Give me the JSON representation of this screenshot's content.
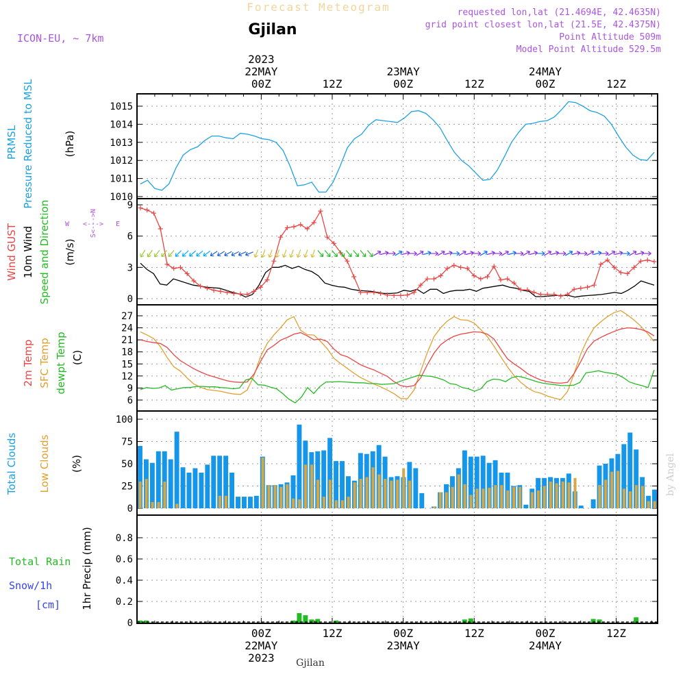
{
  "header": {
    "product": "Forecast Meteogram",
    "location": "Gjilan",
    "model": "ICON-EU, ~ 7km",
    "requested": "requested lon,lat (21.4694E, 42.4635N)",
    "gridpoint": "grid point closest lon,lat (21.5E, 42.4375N)",
    "point_alt": "Point Altitude 509m",
    "model_alt": "Model Point Altitude 529.5m",
    "footer_location": "Gjilan",
    "credit": "by Angel",
    "compass": {
      "n": "N",
      "s": "S",
      "w": "W",
      "e": "E",
      "arrow_h": "<--->"
    }
  },
  "colors": {
    "pressure": "#1ba1e2",
    "gust": "#e84545",
    "wind": "#000000",
    "winddir": "#22bb22",
    "t2m": "#e84545",
    "sfc": "#e0a030",
    "dew": "#22bb22",
    "total_clouds": "#1696e8",
    "low_clouds": "#d4a848",
    "rain": "#22bb22",
    "snow": "#3344ee",
    "violet": "#aa55dd"
  },
  "time_axis": {
    "top": [
      {
        "line1": "2023",
        "line2": "22MAY",
        "line3": "00Z",
        "hour": 21
      },
      {
        "line1": "",
        "line2": "",
        "line3": "12Z",
        "hour": 33
      },
      {
        "line1": "",
        "line2": "23MAY",
        "line3": "00Z",
        "hour": 45
      },
      {
        "line1": "",
        "line2": "",
        "line3": "12Z",
        "hour": 57
      },
      {
        "line1": "",
        "line2": "24MAY",
        "line3": "00Z",
        "hour": 69
      },
      {
        "line1": "",
        "line2": "",
        "line3": "12Z",
        "hour": 81
      }
    ],
    "bottom": [
      {
        "line1": "00Z",
        "line2": "22MAY",
        "line3": "2023",
        "hour": 21
      },
      {
        "line1": "12Z",
        "line2": "",
        "line3": "",
        "hour": 33
      },
      {
        "line1": "00Z",
        "line2": "23MAY",
        "line3": "",
        "hour": 45
      },
      {
        "line1": "12Z",
        "line2": "",
        "line3": "",
        "hour": 57
      },
      {
        "line1": "00Z",
        "line2": "24MAY",
        "line3": "",
        "hour": 69
      },
      {
        "line1": "12Z",
        "line2": "",
        "line3": "",
        "hour": 81
      }
    ]
  },
  "chart_data": [
    {
      "type": "line",
      "panel": "pressure",
      "ylabel": [
        "PRMSL",
        "Pressure Reduced to MSL",
        "(hPa)"
      ],
      "ylim": [
        1010,
        1015.8
      ],
      "yticks": [
        1010,
        1011,
        1012,
        1013,
        1014,
        1015
      ],
      "series": [
        {
          "name": "PRMSL",
          "values": [
            1010.7,
            1010.9,
            1010.45,
            1010.35,
            1010.7,
            1011.6,
            1012.3,
            1012.6,
            1012.75,
            1013.1,
            1013.35,
            1013.35,
            1013.25,
            1013.2,
            1013.5,
            1013.45,
            1013.35,
            1013.2,
            1013.15,
            1013.0,
            1012.55,
            1011.65,
            1010.6,
            1010.65,
            1010.8,
            1010.25,
            1010.25,
            1010.8,
            1011.7,
            1012.7,
            1013.2,
            1013.45,
            1013.95,
            1014.25,
            1014.2,
            1014.15,
            1014.1,
            1014.35,
            1014.7,
            1014.75,
            1014.6,
            1014.25,
            1013.8,
            1013.1,
            1012.45,
            1012.0,
            1011.7,
            1011.3,
            1010.9,
            1010.95,
            1011.45,
            1012.2,
            1013.0,
            1013.55,
            1014.0,
            1014.05,
            1014.15,
            1014.2,
            1014.4,
            1014.8,
            1015.25,
            1015.2,
            1015.0,
            1014.75,
            1014.65,
            1014.45,
            1014.0,
            1013.35,
            1012.75,
            1012.3,
            1012.05,
            1012.0,
            1012.45
          ]
        }
      ]
    },
    {
      "type": "line",
      "panel": "wind",
      "ylabel": [
        "Wind GUST",
        "10m Wind",
        "Speed and Direction",
        "(m/s)"
      ],
      "ylim": [
        0,
        9.2
      ],
      "yticks": [
        0,
        3,
        6,
        9
      ],
      "series": [
        {
          "name": "Wind GUST",
          "values": [
            8.7,
            8.5,
            8.2,
            6.7,
            3.3,
            2.9,
            3.0,
            2.4,
            1.7,
            1.2,
            1.0,
            0.8,
            0.7,
            0.6,
            0.5,
            0.45,
            0.4,
            0.7,
            1.1,
            1.8,
            3.6,
            5.9,
            6.8,
            6.9,
            7.1,
            6.7,
            7.3,
            8.4,
            5.9,
            5.3,
            4.4,
            3.6,
            2.1,
            0.6,
            0.6,
            0.6,
            0.5,
            0.35,
            0.3,
            0.3,
            0.35,
            0.6,
            1.3,
            1.9,
            1.9,
            2.2,
            2.9,
            3.2,
            3.0,
            2.9,
            2.2,
            1.9,
            2.1,
            3.1,
            1.8,
            1.9,
            1.5,
            0.85,
            0.85,
            0.6,
            0.4,
            0.4,
            0.4,
            0.25,
            0.4,
            0.9,
            1.0,
            1.1,
            1.3,
            3.3,
            3.7,
            3.0,
            2.5,
            2.4,
            3.0,
            3.6,
            3.7,
            3.55
          ]
        },
        {
          "name": "10m Wind",
          "values": [
            3.4,
            2.8,
            2.4,
            1.4,
            1.3,
            1.9,
            1.7,
            1.5,
            1.3,
            1.2,
            1.1,
            1.05,
            1.0,
            0.8,
            0.6,
            0.45,
            0.15,
            0.4,
            1.3,
            2.5,
            3.0,
            3.0,
            3.2,
            2.9,
            3.1,
            2.8,
            2.6,
            2.2,
            1.5,
            1.3,
            1.15,
            1.1,
            0.9,
            0.8,
            0.75,
            0.7,
            0.6,
            0.5,
            0.5,
            0.55,
            0.8,
            0.7,
            0.9,
            0.5,
            0.9,
            0.9,
            0.5,
            0.7,
            0.8,
            0.8,
            0.9,
            0.7,
            1.0,
            1.1,
            1.2,
            1.3,
            1.1,
            1.0,
            0.8,
            0.7,
            0.2,
            0.2,
            0.25,
            0.3,
            0.3,
            0.3,
            0.15,
            0.25,
            0.3,
            0.35,
            0.4,
            0.5,
            0.6,
            0.5,
            0.8,
            1.2,
            1.7,
            1.5,
            1.3
          ]
        }
      ],
      "wind_direction": {
        "legend": "Speed and Direction",
        "level": 4.2
      }
    },
    {
      "type": "line",
      "panel": "temperature",
      "ylabel": [
        "2m Temp",
        "SFC Temp",
        "dewpt Temp",
        "(C)"
      ],
      "ylim": [
        4.5,
        28.8
      ],
      "yticks": [
        6,
        9,
        12,
        15,
        18,
        21,
        24,
        27
      ],
      "series": [
        {
          "name": "2m Temp",
          "values": [
            21.0,
            20.6,
            20.3,
            20.1,
            19.1,
            17.3,
            15.8,
            14.8,
            13.8,
            13.0,
            12.3,
            11.8,
            11.3,
            10.8,
            10.5,
            10.4,
            10.5,
            12.4,
            15.6,
            18.5,
            19.6,
            20.9,
            21.6,
            22.4,
            22.8,
            22.0,
            21.0,
            21.2,
            20.6,
            18.7,
            17.3,
            16.8,
            15.8,
            14.8,
            14.1,
            13.5,
            12.7,
            11.9,
            10.6,
            9.6,
            9.3,
            9.6,
            11.5,
            14.8,
            17.7,
            19.8,
            21.0,
            21.9,
            22.4,
            22.7,
            23.0,
            22.9,
            22.4,
            21.2,
            18.7,
            16.3,
            15.0,
            13.9,
            12.6,
            11.7,
            11.0,
            10.6,
            10.3,
            10.2,
            10.4,
            12.6,
            15.6,
            18.8,
            20.7,
            21.6,
            22.4,
            23.1,
            23.7,
            24.0,
            23.9,
            23.6,
            23.0,
            22.0
          ]
        },
        {
          "name": "SFC Temp",
          "values": [
            23.0,
            22.2,
            21.3,
            19.3,
            16.6,
            14.3,
            13.2,
            11.5,
            10.0,
            9.2,
            8.6,
            8.4,
            8.2,
            7.8,
            7.5,
            7.4,
            8.5,
            12.0,
            16.8,
            20.1,
            22.2,
            24.0,
            26.0,
            26.8,
            23.4,
            22.3,
            22.2,
            20.6,
            18.8,
            16.4,
            15.1,
            13.9,
            12.7,
            11.6,
            10.8,
            10.0,
            9.3,
            8.5,
            7.6,
            6.4,
            6.3,
            8.5,
            13.2,
            17.8,
            21.8,
            24.0,
            25.7,
            26.8,
            26.0,
            25.9,
            25.2,
            23.6,
            21.8,
            19.4,
            16.8,
            14.3,
            12.1,
            10.4,
            9.1,
            8.1,
            7.7,
            7.0,
            6.5,
            6.1,
            8.1,
            12.6,
            17.5,
            21.2,
            24.0,
            25.5,
            26.8,
            27.8,
            28.3,
            27.2,
            25.9,
            24.4,
            22.6,
            20.6
          ]
        },
        {
          "name": "dewpt Temp",
          "values": [
            8.6,
            9.1,
            8.9,
            9.0,
            9.6,
            8.5,
            8.8,
            9.1,
            9.1,
            9.4,
            9.4,
            9.3,
            9.3,
            9.1,
            9.0,
            8.8,
            9.0,
            11.0,
            11.4,
            9.8,
            9.7,
            9.2,
            8.8,
            7.6,
            6.2,
            5.3,
            6.7,
            9.1,
            7.6,
            9.4,
            10.5,
            10.5,
            10.6,
            10.5,
            10.4,
            10.3,
            10.3,
            10.1,
            10.1,
            9.9,
            10.0,
            10.1,
            10.7,
            11.2,
            11.7,
            12.2,
            12.0,
            11.9,
            11.5,
            11.0,
            10.1,
            9.9,
            9.1,
            8.8,
            8.2,
            8.8,
            10.6,
            11.2,
            11.1,
            10.6,
            11.6,
            11.9,
            11.6,
            11.1,
            10.6,
            10.2,
            10.0,
            9.8,
            9.6,
            9.6,
            9.7,
            10.4,
            12.8,
            13.0,
            13.3,
            12.9,
            12.7,
            12.4,
            11.6,
            10.5,
            10.0,
            9.6,
            9.1,
            13.5
          ]
        }
      ]
    },
    {
      "type": "bar",
      "panel": "clouds",
      "ylabel": [
        "Total Clouds",
        "Low Clouds",
        "(%)"
      ],
      "ylim": [
        0,
        107
      ],
      "yticks": [
        0,
        25,
        50,
        75,
        100
      ],
      "series": [
        {
          "name": "Total Clouds",
          "values": [
            70,
            55,
            51,
            64,
            64,
            55,
            86,
            46,
            40,
            45,
            40,
            49,
            59,
            59,
            59,
            40,
            13,
            13,
            13,
            14,
            58,
            26,
            26,
            27,
            29,
            37,
            94,
            76,
            63,
            64,
            65,
            79,
            53,
            53,
            36,
            31,
            62,
            61,
            64,
            71,
            58,
            35,
            36,
            35,
            52,
            45,
            17,
            0,
            2,
            18,
            27,
            36,
            45,
            65,
            58,
            58,
            59,
            51,
            54,
            40,
            40,
            25,
            26,
            4,
            22,
            34,
            34,
            35,
            34,
            34,
            39,
            19,
            3,
            0,
            10,
            48,
            50,
            56,
            61,
            72,
            85,
            66,
            35,
            14,
            21
          ]
        },
        {
          "name": "Low Clouds",
          "values": [
            30,
            33,
            7,
            7,
            30,
            0,
            5,
            0,
            0,
            0,
            0,
            0,
            0,
            14,
            14,
            0,
            0,
            0,
            0,
            0,
            57,
            26,
            26,
            24,
            27,
            11,
            10,
            49,
            49,
            32,
            13,
            32,
            9,
            9,
            13,
            29,
            33,
            35,
            46,
            38,
            33,
            31,
            32,
            45,
            31,
            0,
            0,
            0,
            2,
            18,
            18,
            24,
            38,
            27,
            15,
            22,
            22,
            23,
            26,
            26,
            20,
            24,
            24,
            0,
            18,
            20,
            25,
            30,
            28,
            30,
            29,
            34,
            0,
            0,
            0,
            26,
            32,
            41,
            42,
            22,
            19,
            26,
            25,
            8,
            8
          ]
        }
      ]
    },
    {
      "type": "bar",
      "panel": "precip",
      "ylabel": [
        "1hr Precip (mm)"
      ],
      "left_labels": [
        "Total  Rain",
        "Snow/1h",
        "[cm]"
      ],
      "ylim": [
        0,
        1.0
      ],
      "yticks": [
        0,
        0.2,
        0.4,
        0.6,
        0.8
      ],
      "series": [
        {
          "name": "Total Rain",
          "values": [
            0.02,
            0.02,
            0,
            0,
            0,
            0,
            0,
            0,
            0,
            0,
            0,
            0,
            0,
            0,
            0,
            0,
            0,
            0,
            0,
            0,
            0,
            0,
            0,
            0,
            0,
            0.02,
            0.09,
            0.07,
            0.03,
            0.035,
            0,
            0,
            0.02,
            0,
            0,
            0,
            0,
            0,
            0,
            0,
            0,
            0,
            0,
            0,
            0,
            0,
            0,
            0,
            0,
            0,
            0,
            0,
            0,
            0.03,
            0.04,
            0,
            0,
            0,
            0,
            0,
            0,
            0,
            0,
            0,
            0,
            0,
            0,
            0,
            0,
            0,
            0,
            0,
            0,
            0,
            0.035,
            0.03,
            0,
            0,
            0,
            0,
            0,
            0.05,
            0,
            0,
            0
          ]
        }
      ]
    }
  ]
}
